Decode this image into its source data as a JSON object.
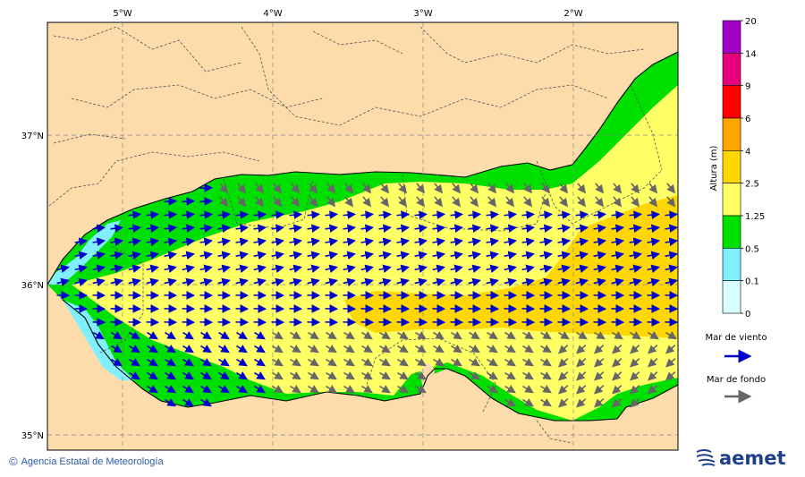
{
  "map": {
    "lon_labels": [
      "5°W",
      "4°W",
      "3°W",
      "2°W"
    ],
    "lat_labels": [
      "37°N",
      "36°N",
      "35°N"
    ]
  },
  "colorbar": {
    "title": "Altura (m)",
    "ticks": [
      "20",
      "14",
      "9",
      "6",
      "4",
      "2.5",
      "1.25",
      "0.5",
      "0.1",
      "0"
    ],
    "colors": [
      "#a000c8",
      "#e6007e",
      "#ff0000",
      "#ffa500",
      "#ffd700",
      "#ffff66",
      "#00e000",
      "#80f0ff",
      "#d8ffff"
    ]
  },
  "legend": {
    "wind_sea": "Mar de viento",
    "swell": "Mar de fondo",
    "wind_sea_color": "#0000cc",
    "swell_color": "#666666"
  },
  "footer": {
    "copyright_symbol": "©",
    "agency": "Agencia Estatal de Meteorología"
  },
  "logo": {
    "text": "aemet"
  }
}
